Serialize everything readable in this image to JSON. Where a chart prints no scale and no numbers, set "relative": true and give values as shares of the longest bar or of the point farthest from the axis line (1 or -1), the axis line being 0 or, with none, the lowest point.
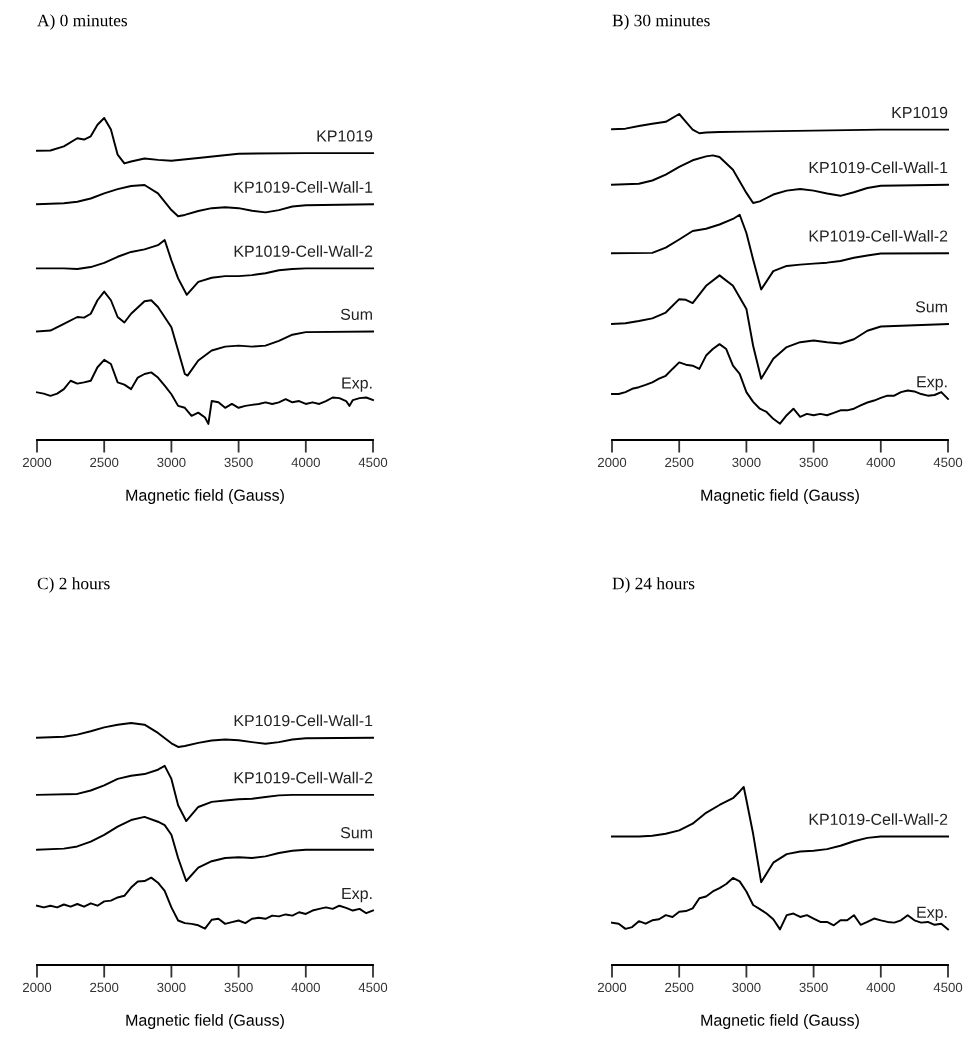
{
  "chart_data": [
    {
      "type": "line",
      "title": "A) 0 minutes",
      "xlabel": "Magnetic field (Gauss)",
      "xlim": [
        2000,
        4500
      ],
      "xticks": [
        2000,
        2500,
        3000,
        3500,
        4000,
        4500
      ],
      "relative": true,
      "tick_labels": "x",
      "series": [
        {
          "name": "KP1019",
          "color": "#000000",
          "x": [
            2000,
            2100,
            2200,
            2300,
            2350,
            2400,
            2450,
            2500,
            2550,
            2600,
            2650,
            2700,
            2800,
            2900,
            3000,
            3200,
            3500,
            4000,
            4500
          ],
          "values": [
            0.898,
            0.899,
            0.912,
            0.937,
            0.933,
            0.943,
            0.979,
            1.0,
            0.964,
            0.886,
            0.859,
            0.865,
            0.874,
            0.87,
            0.867,
            0.876,
            0.889,
            0.891,
            0.891
          ]
        },
        {
          "name": "KP1019-Cell-Wall-1",
          "color": "#000000",
          "x": [
            2000,
            2200,
            2300,
            2400,
            2500,
            2600,
            2700,
            2800,
            2900,
            3000,
            3050,
            3100,
            3200,
            3300,
            3400,
            3500,
            3600,
            3700,
            3800,
            3900,
            4000,
            4500
          ],
          "values": [
            0.732,
            0.735,
            0.74,
            0.75,
            0.766,
            0.779,
            0.789,
            0.792,
            0.766,
            0.714,
            0.695,
            0.699,
            0.711,
            0.72,
            0.723,
            0.72,
            0.712,
            0.707,
            0.714,
            0.725,
            0.729,
            0.732
          ]
        },
        {
          "name": "KP1019-Cell-Wall-2",
          "color": "#000000",
          "x": [
            2000,
            2200,
            2300,
            2400,
            2500,
            2600,
            2700,
            2800,
            2900,
            2950,
            3000,
            3050,
            3114,
            3200,
            3300,
            3400,
            3500,
            3600,
            3700,
            3800,
            3900,
            4000,
            4500
          ],
          "values": [
            0.533,
            0.533,
            0.531,
            0.537,
            0.55,
            0.569,
            0.584,
            0.592,
            0.605,
            0.621,
            0.558,
            0.502,
            0.451,
            0.491,
            0.504,
            0.509,
            0.509,
            0.512,
            0.518,
            0.527,
            0.531,
            0.533,
            0.533
          ]
        },
        {
          "name": "Sum",
          "color": "#000000",
          "x": [
            2000,
            2100,
            2200,
            2300,
            2350,
            2400,
            2450,
            2500,
            2550,
            2600,
            2650,
            2700,
            2800,
            2850,
            2900,
            3000,
            3050,
            3100,
            3120,
            3200,
            3300,
            3400,
            3500,
            3600,
            3700,
            3800,
            3900,
            4000,
            4500
          ],
          "values": [
            0.337,
            0.34,
            0.361,
            0.382,
            0.38,
            0.392,
            0.434,
            0.461,
            0.434,
            0.382,
            0.365,
            0.392,
            0.431,
            0.434,
            0.413,
            0.35,
            0.278,
            0.205,
            0.2,
            0.247,
            0.278,
            0.29,
            0.293,
            0.29,
            0.293,
            0.308,
            0.327,
            0.335,
            0.337
          ]
        },
        {
          "name": "Exp.",
          "color": "#000000",
          "x": [
            2000,
            2050,
            2100,
            2150,
            2200,
            2250,
            2300,
            2350,
            2400,
            2450,
            2500,
            2550,
            2600,
            2650,
            2700,
            2750,
            2800,
            2850,
            2900,
            2950,
            3000,
            3050,
            3100,
            3150,
            3200,
            3250,
            3275,
            3300,
            3350,
            3400,
            3450,
            3500,
            3550,
            3600,
            3650,
            3700,
            3750,
            3800,
            3850,
            3900,
            3950,
            4000,
            4050,
            4100,
            4150,
            4200,
            4250,
            4300,
            4325,
            4350,
            4400,
            4450,
            4500
          ],
          "values": [
            0.148,
            0.144,
            0.137,
            0.144,
            0.158,
            0.184,
            0.175,
            0.179,
            0.184,
            0.226,
            0.249,
            0.236,
            0.179,
            0.172,
            0.158,
            0.194,
            0.205,
            0.21,
            0.194,
            0.169,
            0.142,
            0.106,
            0.1,
            0.075,
            0.085,
            0.07,
            0.05,
            0.121,
            0.117,
            0.1,
            0.112,
            0.1,
            0.106,
            0.109,
            0.112,
            0.117,
            0.112,
            0.117,
            0.127,
            0.117,
            0.121,
            0.112,
            0.117,
            0.112,
            0.121,
            0.132,
            0.13,
            0.121,
            0.106,
            0.124,
            0.13,
            0.132,
            0.124
          ]
        }
      ]
    },
    {
      "type": "line",
      "title": "B) 30 minutes",
      "xlabel": "Magnetic field (Gauss)",
      "xlim": [
        2000,
        4500
      ],
      "xticks": [
        2000,
        2500,
        3000,
        3500,
        4000,
        4500
      ],
      "relative": true,
      "tick_labels": "x",
      "series": [
        {
          "name": "KP1019",
          "color": "#000000",
          "x": [
            2000,
            2100,
            2200,
            2300,
            2400,
            2500,
            2550,
            2600,
            2650,
            2700,
            2800,
            3000,
            3500,
            4000,
            4500
          ],
          "values": [
            0.953,
            0.955,
            0.963,
            0.97,
            0.976,
            1.0,
            0.976,
            0.952,
            0.941,
            0.943,
            0.945,
            0.946,
            0.949,
            0.952,
            0.952
          ]
        },
        {
          "name": "KP1019-Cell-Wall-1",
          "color": "#000000",
          "x": [
            2000,
            2200,
            2300,
            2400,
            2500,
            2600,
            2700,
            2750,
            2800,
            2900,
            3000,
            3050,
            3100,
            3200,
            3300,
            3400,
            3500,
            3600,
            3700,
            3800,
            3900,
            4000,
            4500
          ],
          "values": [
            0.783,
            0.786,
            0.796,
            0.814,
            0.838,
            0.858,
            0.87,
            0.873,
            0.868,
            0.829,
            0.758,
            0.727,
            0.732,
            0.753,
            0.765,
            0.77,
            0.765,
            0.756,
            0.749,
            0.76,
            0.773,
            0.78,
            0.783
          ]
        },
        {
          "name": "KP1019-Cell-Wall-2",
          "color": "#000000",
          "x": [
            2000,
            2300,
            2400,
            2500,
            2600,
            2700,
            2800,
            2900,
            2950,
            3000,
            3050,
            3110,
            3200,
            3300,
            3400,
            3500,
            3600,
            3700,
            3800,
            3900,
            4000,
            4500
          ],
          "values": [
            0.573,
            0.574,
            0.59,
            0.615,
            0.641,
            0.648,
            0.661,
            0.678,
            0.691,
            0.635,
            0.554,
            0.462,
            0.518,
            0.534,
            0.538,
            0.541,
            0.544,
            0.549,
            0.559,
            0.566,
            0.572,
            0.573
          ]
        },
        {
          "name": "Sum",
          "color": "#000000",
          "x": [
            2000,
            2100,
            2200,
            2300,
            2400,
            2500,
            2550,
            2600,
            2700,
            2800,
            2900,
            3000,
            3050,
            3110,
            3200,
            3300,
            3400,
            3500,
            3600,
            3700,
            3800,
            3900,
            4000,
            4500
          ],
          "values": [
            0.356,
            0.358,
            0.365,
            0.373,
            0.391,
            0.432,
            0.43,
            0.42,
            0.473,
            0.505,
            0.473,
            0.402,
            0.289,
            0.188,
            0.249,
            0.285,
            0.3,
            0.305,
            0.3,
            0.296,
            0.309,
            0.335,
            0.348,
            0.356
          ]
        },
        {
          "name": "Exp.",
          "color": "#000000",
          "x": [
            2000,
            2050,
            2100,
            2150,
            2200,
            2250,
            2300,
            2350,
            2400,
            2450,
            2500,
            2550,
            2600,
            2650,
            2700,
            2750,
            2800,
            2850,
            2900,
            2950,
            3000,
            3050,
            3100,
            3150,
            3200,
            3250,
            3300,
            3350,
            3400,
            3450,
            3500,
            3550,
            3600,
            3650,
            3700,
            3750,
            3800,
            3850,
            3900,
            3950,
            4000,
            4050,
            4100,
            4150,
            4200,
            4250,
            4300,
            4350,
            4400,
            4450,
            4500
          ],
          "values": [
            0.141,
            0.141,
            0.147,
            0.157,
            0.162,
            0.169,
            0.177,
            0.188,
            0.197,
            0.218,
            0.238,
            0.231,
            0.228,
            0.218,
            0.259,
            0.279,
            0.294,
            0.279,
            0.228,
            0.203,
            0.147,
            0.117,
            0.096,
            0.086,
            0.065,
            0.05,
            0.076,
            0.096,
            0.071,
            0.08,
            0.076,
            0.08,
            0.076,
            0.083,
            0.091,
            0.091,
            0.096,
            0.106,
            0.115,
            0.121,
            0.129,
            0.136,
            0.136,
            0.147,
            0.152,
            0.149,
            0.141,
            0.136,
            0.138,
            0.147,
            0.126
          ]
        }
      ]
    },
    {
      "type": "line",
      "title": "C) 2 hours",
      "xlabel": "Magnetic field (Gauss)",
      "xlim": [
        2000,
        4500
      ],
      "xticks": [
        2000,
        2500,
        3000,
        3500,
        4000,
        4500
      ],
      "relative": true,
      "tick_labels": "x",
      "series": [
        {
          "name": "KP1019-Cell-Wall-1",
          "color": "#000000",
          "x": [
            2000,
            2200,
            2300,
            2400,
            2500,
            2600,
            2700,
            2800,
            2900,
            3000,
            3050,
            3100,
            3200,
            3300,
            3400,
            3500,
            3600,
            3700,
            3800,
            3900,
            4000,
            4500
          ],
          "values": [
            0.939,
            0.943,
            0.952,
            0.966,
            0.982,
            0.993,
            1.0,
            0.993,
            0.959,
            0.916,
            0.901,
            0.905,
            0.918,
            0.928,
            0.932,
            0.929,
            0.921,
            0.914,
            0.921,
            0.932,
            0.937,
            0.939
          ]
        },
        {
          "name": "KP1019-Cell-Wall-2",
          "color": "#000000",
          "x": [
            2000,
            2300,
            2400,
            2500,
            2600,
            2700,
            2800,
            2900,
            2950,
            3000,
            3050,
            3110,
            3200,
            3300,
            3400,
            3500,
            3600,
            3700,
            3800,
            3900,
            4500
          ],
          "values": [
            0.703,
            0.707,
            0.721,
            0.742,
            0.769,
            0.782,
            0.789,
            0.807,
            0.823,
            0.769,
            0.66,
            0.595,
            0.653,
            0.674,
            0.68,
            0.685,
            0.687,
            0.694,
            0.701,
            0.703,
            0.703
          ]
        },
        {
          "name": "Sum",
          "color": "#000000",
          "x": [
            2000,
            2200,
            2300,
            2400,
            2500,
            2600,
            2700,
            2800,
            2900,
            2950,
            3000,
            3050,
            3110,
            3200,
            3300,
            3400,
            3500,
            3600,
            3700,
            3800,
            3900,
            4000,
            4500
          ],
          "values": [
            0.476,
            0.481,
            0.49,
            0.51,
            0.538,
            0.572,
            0.599,
            0.612,
            0.592,
            0.578,
            0.538,
            0.442,
            0.347,
            0.402,
            0.429,
            0.442,
            0.445,
            0.442,
            0.449,
            0.463,
            0.472,
            0.476,
            0.476
          ]
        },
        {
          "name": "Exp.",
          "color": "#000000",
          "x": [
            2000,
            2050,
            2100,
            2150,
            2200,
            2250,
            2300,
            2350,
            2400,
            2450,
            2500,
            2550,
            2600,
            2650,
            2700,
            2750,
            2800,
            2850,
            2900,
            2950,
            3000,
            3050,
            3100,
            3150,
            3200,
            3250,
            3300,
            3350,
            3400,
            3450,
            3500,
            3550,
            3600,
            3650,
            3700,
            3750,
            3800,
            3850,
            3900,
            3950,
            4000,
            4050,
            4100,
            4150,
            4200,
            4250,
            4300,
            4350,
            4400,
            4450,
            4500
          ],
          "values": [
            0.245,
            0.238,
            0.245,
            0.238,
            0.25,
            0.241,
            0.252,
            0.241,
            0.255,
            0.245,
            0.263,
            0.266,
            0.279,
            0.286,
            0.32,
            0.345,
            0.347,
            0.361,
            0.34,
            0.306,
            0.238,
            0.184,
            0.173,
            0.17,
            0.164,
            0.15,
            0.187,
            0.191,
            0.17,
            0.177,
            0.184,
            0.173,
            0.191,
            0.195,
            0.191,
            0.204,
            0.201,
            0.209,
            0.204,
            0.218,
            0.211,
            0.225,
            0.232,
            0.238,
            0.232,
            0.245,
            0.236,
            0.225,
            0.232,
            0.214,
            0.225
          ]
        }
      ]
    },
    {
      "type": "line",
      "title": "D) 24 hours",
      "xlabel": "Magnetic field (Gauss)",
      "xlim": [
        2000,
        4500
      ],
      "xticks": [
        2000,
        2500,
        3000,
        3500,
        4000,
        4500
      ],
      "relative": true,
      "tick_labels": "x",
      "series": [
        {
          "name": "KP1019-Cell-Wall-2",
          "color": "#000000",
          "x": [
            2000,
            2200,
            2300,
            2400,
            2500,
            2600,
            2700,
            2800,
            2900,
            2950,
            2980,
            3000,
            3050,
            3110,
            3200,
            3300,
            3400,
            3500,
            3600,
            3700,
            3800,
            3900,
            4000,
            4500
          ],
          "values": [
            0.722,
            0.722,
            0.726,
            0.737,
            0.756,
            0.794,
            0.855,
            0.899,
            0.937,
            0.975,
            1.0,
            0.927,
            0.737,
            0.465,
            0.575,
            0.623,
            0.638,
            0.642,
            0.651,
            0.67,
            0.695,
            0.714,
            0.722,
            0.722
          ]
        },
        {
          "name": "Exp.",
          "color": "#000000",
          "x": [
            2000,
            2050,
            2100,
            2150,
            2200,
            2250,
            2300,
            2350,
            2400,
            2450,
            2500,
            2550,
            2600,
            2650,
            2700,
            2750,
            2800,
            2850,
            2900,
            2950,
            3000,
            3050,
            3100,
            3150,
            3200,
            3250,
            3300,
            3350,
            3400,
            3450,
            3500,
            3550,
            3600,
            3650,
            3700,
            3750,
            3800,
            3850,
            3900,
            3950,
            4000,
            4050,
            4100,
            4150,
            4200,
            4250,
            4300,
            4350,
            4400,
            4450,
            4500
          ],
          "values": [
            0.238,
            0.232,
            0.203,
            0.213,
            0.246,
            0.232,
            0.251,
            0.257,
            0.28,
            0.27,
            0.299,
            0.303,
            0.318,
            0.375,
            0.385,
            0.413,
            0.432,
            0.455,
            0.489,
            0.47,
            0.413,
            0.337,
            0.314,
            0.289,
            0.257,
            0.2,
            0.28,
            0.289,
            0.27,
            0.28,
            0.261,
            0.242,
            0.242,
            0.223,
            0.251,
            0.251,
            0.28,
            0.226,
            0.242,
            0.261,
            0.251,
            0.242,
            0.238,
            0.251,
            0.28,
            0.251,
            0.238,
            0.242,
            0.226,
            0.232,
            0.2
          ]
        }
      ]
    }
  ]
}
